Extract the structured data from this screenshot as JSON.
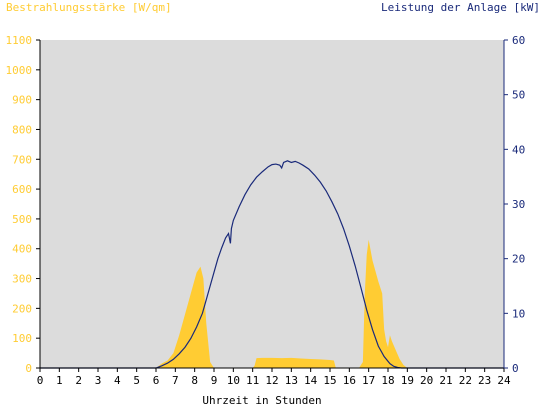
{
  "chart_data": {
    "type": "area",
    "left_axis_label": "Bestrahlungsstärke [W/qm]",
    "right_axis_label": "Leistung der Anlage [kW]",
    "xlabel": "Uhrzeit in Stunden",
    "xlim": [
      0,
      24
    ],
    "ylim_left": [
      0,
      1100
    ],
    "ylim_right": [
      0,
      60
    ],
    "x_ticks": [
      "0",
      "1",
      "2",
      "3",
      "4",
      "5",
      "6",
      "7",
      "8",
      "9",
      "10",
      "11",
      "12",
      "13",
      "14",
      "15",
      "16",
      "17",
      "18",
      "19",
      "20",
      "21",
      "22",
      "23",
      "24"
    ],
    "y_left_ticks": [
      "0",
      "100",
      "200",
      "300",
      "400",
      "500",
      "600",
      "700",
      "800",
      "900",
      "1000",
      "1100"
    ],
    "y_right_ticks": [
      "0",
      "10",
      "20",
      "30",
      "40",
      "50",
      "60"
    ],
    "grid": false,
    "colors": {
      "background": "#dcdcdc",
      "irradiance": "#ffcc33",
      "irradiance_text": "#ffcc33",
      "power": "#1a2a7a",
      "power_text": "#1a2a7a",
      "axis": "#000000"
    },
    "series": [
      {
        "axis": "left",
        "type": "area",
        "x": [
          0,
          6.0,
          6.3,
          6.6,
          6.9,
          7.2,
          7.5,
          7.8,
          8.1,
          8.3,
          8.45,
          8.6,
          8.8,
          9.0,
          11.0,
          11.1,
          11.2,
          11.5,
          12.0,
          12.5,
          13.0,
          13.5,
          14.0,
          14.5,
          15.0,
          15.2,
          15.3,
          16.5,
          16.7,
          16.8,
          16.9,
          17.0,
          17.2,
          17.5,
          17.7,
          17.8,
          17.9,
          18.0,
          18.1,
          18.2,
          18.4,
          18.6,
          18.8,
          19.0,
          24
        ],
        "y": [
          0,
          0,
          15,
          25,
          50,
          110,
          180,
          250,
          320,
          340,
          300,
          150,
          20,
          0,
          0,
          8,
          33,
          34,
          34,
          33,
          34,
          32,
          30,
          29,
          27,
          25,
          0,
          0,
          20,
          250,
          380,
          430,
          360,
          290,
          250,
          130,
          90,
          70,
          110,
          90,
          60,
          30,
          10,
          0,
          0
        ]
      },
      {
        "axis": "right",
        "type": "line",
        "x": [
          0,
          6.0,
          6.3,
          6.6,
          6.9,
          7.2,
          7.5,
          7.8,
          8.1,
          8.4,
          8.6,
          8.8,
          9.0,
          9.2,
          9.4,
          9.6,
          9.75,
          9.85,
          9.9,
          10.0,
          10.3,
          10.6,
          10.9,
          11.2,
          11.5,
          11.8,
          12.0,
          12.2,
          12.4,
          12.5,
          12.6,
          12.8,
          13.0,
          13.2,
          13.4,
          13.6,
          13.9,
          14.2,
          14.5,
          14.8,
          15.1,
          15.4,
          15.7,
          16.0,
          16.3,
          16.6,
          16.9,
          17.2,
          17.5,
          17.8,
          18.1,
          18.3,
          18.5,
          18.7,
          19.0,
          24
        ],
        "y": [
          0,
          0,
          0.4,
          0.9,
          1.6,
          2.6,
          3.8,
          5.4,
          7.5,
          10.0,
          12.5,
          15.0,
          17.5,
          20.0,
          22.0,
          23.8,
          24.6,
          22.8,
          25.5,
          27.0,
          29.5,
          31.7,
          33.5,
          34.9,
          35.9,
          36.8,
          37.2,
          37.3,
          37.1,
          36.6,
          37.6,
          37.9,
          37.6,
          37.8,
          37.5,
          37.1,
          36.4,
          35.3,
          34.0,
          32.4,
          30.4,
          28.2,
          25.5,
          22.3,
          18.7,
          14.7,
          10.6,
          7.0,
          4.0,
          2.1,
          0.8,
          0.3,
          0.1,
          0,
          0,
          0
        ]
      }
    ]
  }
}
